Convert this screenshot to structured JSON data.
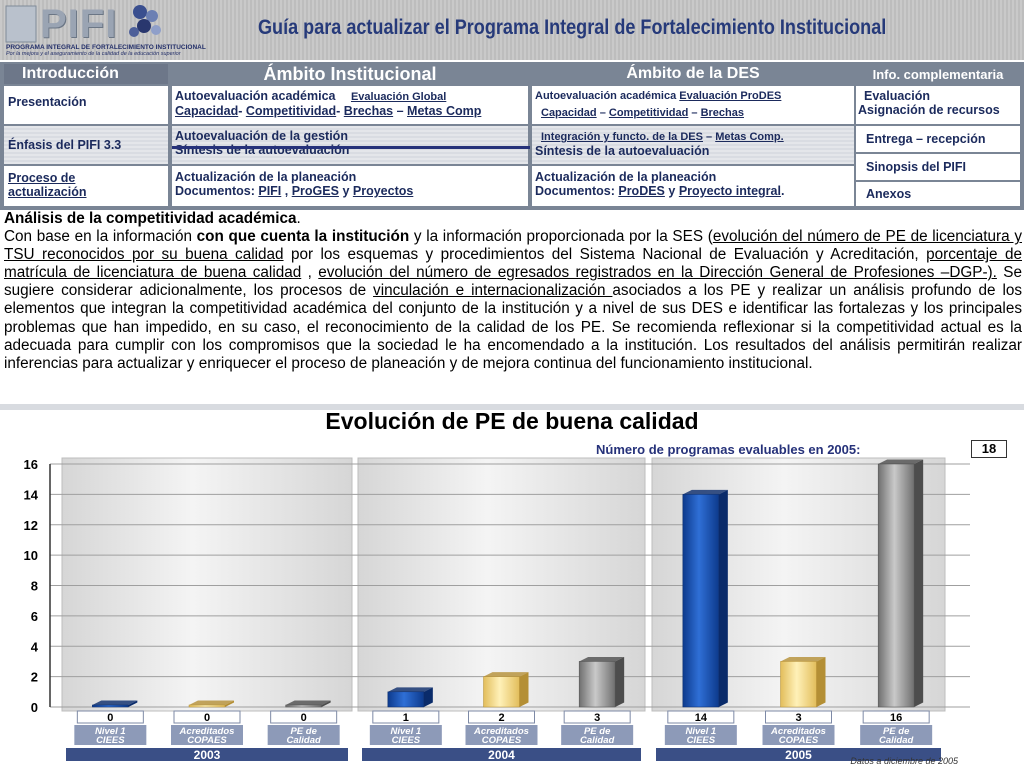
{
  "header": {
    "logo_text": "PIFI",
    "logo_subtitle": "PROGRAMA INTEGRAL DE FORTALECIMIENTO INSTITUCIONAL",
    "logo_tagline": "Por la mejora y el aseguramiento de la calidad de la educación superior",
    "title": "Guía para actualizar el Programa Integral de Fortalecimiento Institucional"
  },
  "nav": {
    "col_intro": "Introducción",
    "col_inst": "Ámbito Institucional",
    "col_des": "Ámbito de la DES",
    "col_info": "Info. complementaria",
    "intro_items": [
      "Presentación",
      "Énfasis del PIFI 3.3",
      "Proceso de",
      "actualización"
    ],
    "inst_row1_a": "Autoevaluación académica",
    "inst_row1_b": "Evaluación Global",
    "inst_row1_c1": "Capacidad",
    "inst_row1_c2": "Competitividad",
    "inst_row1_c3": "Brechas",
    "inst_row1_c4": "Metas Comp",
    "inst_row2_a": "Autoevaluación de la gestión",
    "inst_row2_b": "Síntesis de la autoevaluación",
    "inst_row3_a": "Actualización de la planeación",
    "inst_row3_b": "Documentos:",
    "inst_row3_l1": "PIFI",
    "inst_row3_l2": "ProGES",
    "inst_row3_y": "y",
    "inst_row3_l3": "Proyectos",
    "des_row1_a": "Autoevaluación académica",
    "des_row1_b": "Evaluación ProDES",
    "des_row1_c1": "Capacidad",
    "des_row1_c2": "Competitividad",
    "des_row1_c3": "Brechas",
    "des_row2_a1": "Integración y functo. de la DES",
    "des_row2_a2": "Metas Comp.",
    "des_row2_b": "Síntesis de la autoevaluación",
    "des_row3_a": "Actualización de la planeación",
    "des_row3_b": "Documentos:",
    "des_row3_l1": "ProDES",
    "des_row3_y": "y",
    "des_row3_l2": "Proyecto integral",
    "info_items": [
      "Evaluación",
      "Asignación de recursos",
      "Entrega – recepción",
      "Sinopsis del PIFI",
      "Anexos"
    ]
  },
  "text": {
    "title": "Análisis de la competitividad académica",
    "p1": "Con base en la información",
    "p1_bold": "con que cuenta la institución",
    "p2": "y la información proporcionada por la SES (",
    "u1": "evolución del número de PE de licenciatura y TSU reconocidos por su buena calidad",
    "p3": " por los esquemas y procedimientos del Sistema Nacional de Evaluación y Acreditación, ",
    "u2": "porcentaje de matrícula de licenciatura de buena calidad",
    "p4": " , ",
    "u3": "evolución del número de egresados registrados en la Dirección General de Profesiones –DGP-).",
    "p5": " Se sugiere considerar adicionalmente, los procesos de ",
    "u4": "vinculación e internacionalización ",
    "p6": "asociados a los PE y realizar un análisis profundo de los elementos que integran la competitividad académica del conjunto de la institución y a nivel de sus DES e identificar las fortalezas y los principales problemas que han impedido, en su caso, el reconocimiento de la calidad de los PE. Se recomienda reflexionar si la competitividad actual es la adecuada para cumplir con los compromisos que la sociedad le ha encomendado a la institución. Los resultados del análisis permitirán realizar inferencias para actualizar y enriquecer el proceso de planeación y de mejora continua del funcionamiento institucional."
  },
  "chart_data": {
    "type": "bar",
    "title": "Evolución de PE de buena calidad",
    "count_label": "Número de programas evaluables en 2005:",
    "count_value": "18",
    "footnote": "Datos a diciembre de 2005",
    "ylim": [
      0,
      16
    ],
    "yticks": [
      "0",
      "2",
      "4",
      "6",
      "8",
      "10",
      "12",
      "14",
      "16"
    ],
    "groups": [
      {
        "year": "2003",
        "bars": [
          {
            "label1": "Nivel 1",
            "label2": "CIEES",
            "value": 0,
            "display": "0",
            "color": "#1a4fa8"
          },
          {
            "label1": "Acreditados",
            "label2": "COPAES",
            "value": 0,
            "display": "0",
            "color": "#f1d58a"
          },
          {
            "label1": "PE de",
            "label2": "Calidad",
            "value": 0,
            "display": "0",
            "color": "#9a9a9a"
          }
        ]
      },
      {
        "year": "2004",
        "bars": [
          {
            "label1": "Nivel 1",
            "label2": "CIEES",
            "value": 1,
            "display": "1",
            "color": "#1a4fa8"
          },
          {
            "label1": "Acreditados",
            "label2": "COPAES",
            "value": 2,
            "display": "2",
            "color": "#f1d58a"
          },
          {
            "label1": "PE de",
            "label2": "Calidad",
            "value": 3,
            "display": "3",
            "color": "#9a9a9a"
          }
        ]
      },
      {
        "year": "2005",
        "bars": [
          {
            "label1": "Nivel 1",
            "label2": "CIEES",
            "value": 14,
            "display": "14",
            "color": "#1a4fa8"
          },
          {
            "label1": "Acreditados",
            "label2": "COPAES",
            "value": 3,
            "display": "3",
            "color": "#f1d58a"
          },
          {
            "label1": "PE de",
            "label2": "Calidad",
            "value": 16,
            "display": "16",
            "color": "#9a9a9a"
          }
        ]
      }
    ]
  }
}
